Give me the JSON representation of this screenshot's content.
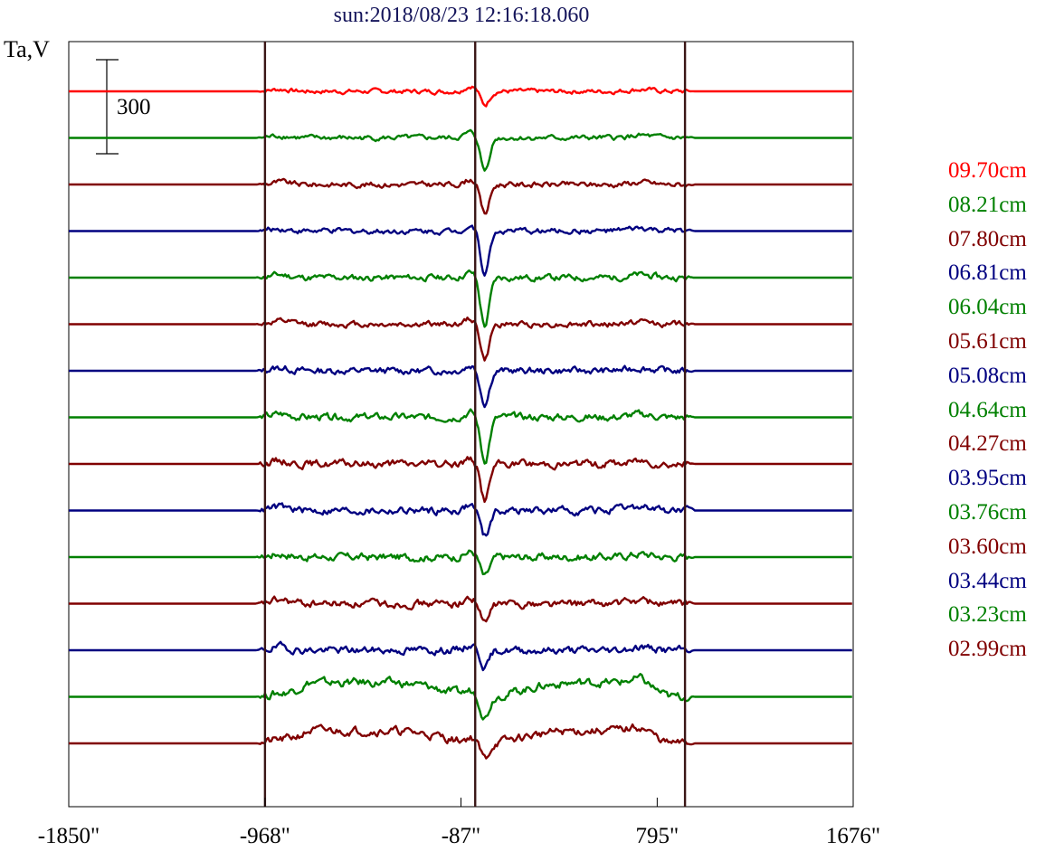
{
  "chart_data": {
    "type": "line",
    "title": "sun:2018/08/23 12:16:18.060",
    "ylabel": "Ta,V",
    "scale_bar_label": "300",
    "x_ticks": [
      "-1850\"",
      "-968\"",
      "-87\"",
      "795\"",
      "1676\""
    ],
    "x_tick_values": [
      -1850,
      -968,
      -87,
      795,
      1676
    ],
    "xlim": [
      -1850,
      1676
    ],
    "vertical_markers": [
      -968,
      -23,
      920
    ],
    "series": [
      {
        "name": "09.70cm",
        "color": "#ff0000",
        "baseline": 0,
        "dip": 45,
        "activity": 0.55,
        "pedestal": 0
      },
      {
        "name": "08.21cm",
        "color": "#008000",
        "baseline": 1,
        "dip": 105,
        "activity": 0.6,
        "pedestal": 0
      },
      {
        "name": "07.80cm",
        "color": "#800000",
        "baseline": 2,
        "dip": 95,
        "activity": 0.65,
        "pedestal": 0
      },
      {
        "name": "06.81cm",
        "color": "#000080",
        "baseline": 3,
        "dip": 135,
        "activity": 0.65,
        "pedestal": 0
      },
      {
        "name": "06.04cm",
        "color": "#008000",
        "baseline": 4,
        "dip": 155,
        "activity": 0.75,
        "pedestal": 0
      },
      {
        "name": "05.61cm",
        "color": "#800000",
        "baseline": 5,
        "dip": 115,
        "activity": 0.7,
        "pedestal": 0
      },
      {
        "name": "05.08cm",
        "color": "#000080",
        "baseline": 6,
        "dip": 105,
        "activity": 0.8,
        "pedestal": 0
      },
      {
        "name": "04.64cm",
        "color": "#008000",
        "baseline": 7,
        "dip": 140,
        "activity": 0.85,
        "pedestal": 0
      },
      {
        "name": "04.27cm",
        "color": "#800000",
        "baseline": 8,
        "dip": 115,
        "activity": 0.9,
        "pedestal": 0
      },
      {
        "name": "03.95cm",
        "color": "#000080",
        "baseline": 9,
        "dip": 85,
        "activity": 0.9,
        "pedestal": 0
      },
      {
        "name": "03.76cm",
        "color": "#008000",
        "baseline": 10,
        "dip": 65,
        "activity": 0.9,
        "pedestal": 0
      },
      {
        "name": "03.60cm",
        "color": "#800000",
        "baseline": 11,
        "dip": 65,
        "activity": 0.9,
        "pedestal": 0
      },
      {
        "name": "03.44cm",
        "color": "#000080",
        "baseline": 12,
        "dip": 55,
        "activity": 0.9,
        "pedestal": 0
      },
      {
        "name": "03.23cm",
        "color": "#008000",
        "baseline": 13,
        "dip": 65,
        "activity": 1.0,
        "pedestal": 45
      },
      {
        "name": "02.99cm",
        "color": "#800000",
        "baseline": 14,
        "dip": 50,
        "activity": 1.0,
        "pedestal": 40
      }
    ],
    "legend": [
      "09.70cm",
      "08.21cm",
      "07.80cm",
      "06.81cm",
      "06.04cm",
      "05.61cm",
      "05.08cm",
      "04.64cm",
      "04.27cm",
      "03.95cm",
      "03.76cm",
      "03.60cm",
      "03.44cm",
      "03.23cm",
      "02.99cm"
    ],
    "legend_position": "right",
    "grid": false
  }
}
